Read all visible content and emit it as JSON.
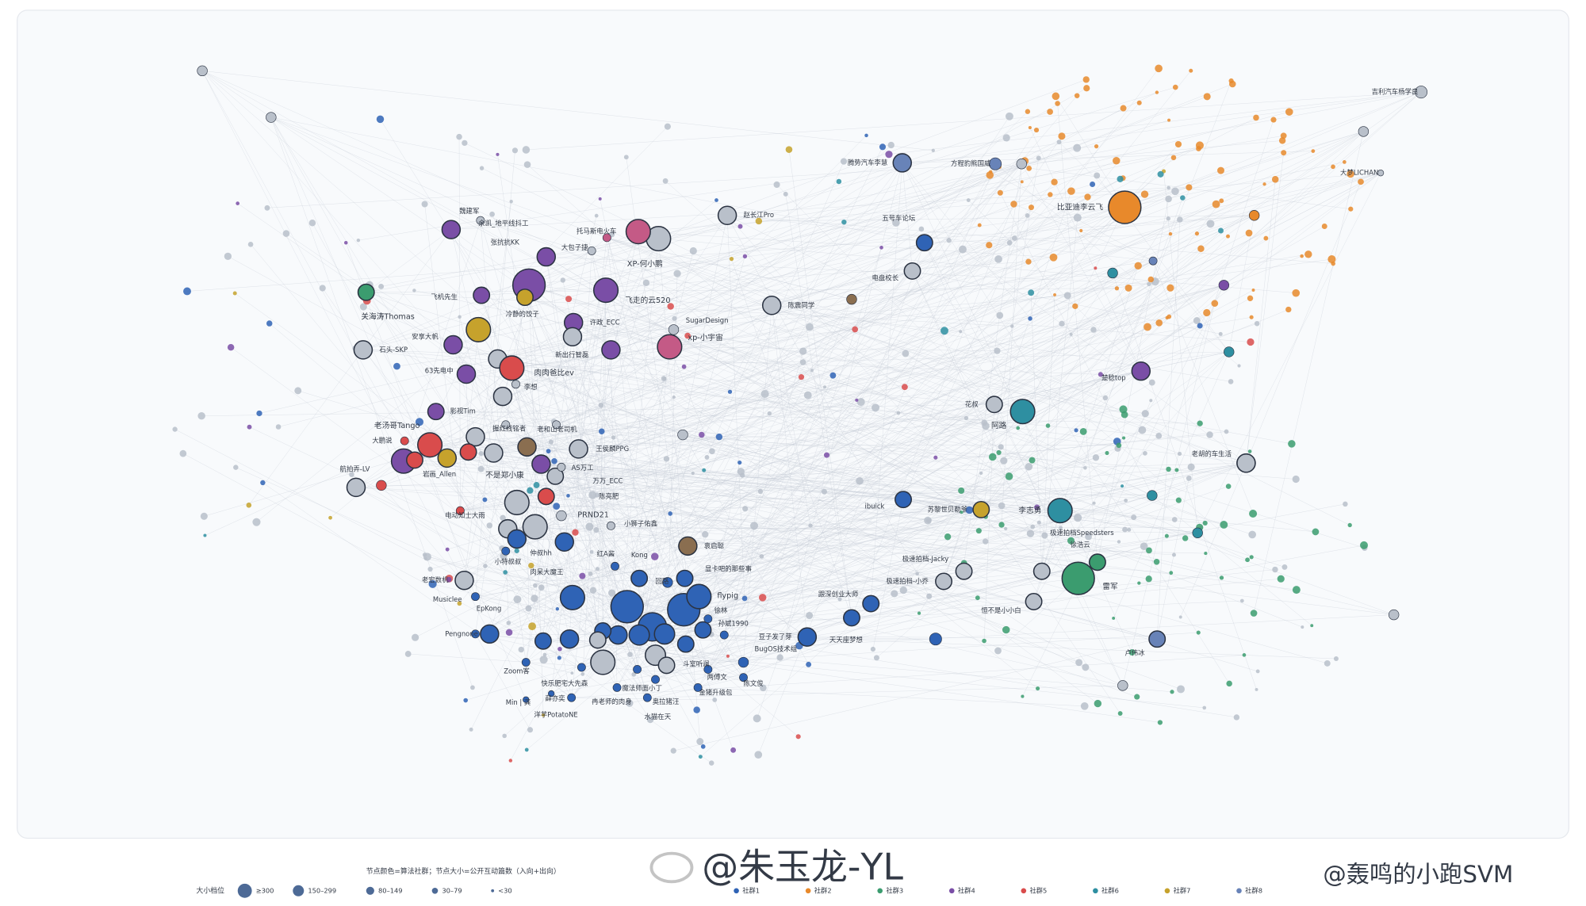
{
  "nodes": [
    {
      "label": "吉利汽车杨学良"
    },
    {
      "label": "大梦LICHAN"
    },
    {
      "label": "比亚迪李云飞"
    },
    {
      "label": "腾势汽车李慧"
    },
    {
      "label": "方程豹熊国威"
    },
    {
      "label": "赵长江Pro"
    },
    {
      "label": "五号车论坛"
    },
    {
      "label": "电盘校长"
    },
    {
      "label": "陈震同学"
    },
    {
      "label": "楚稔top"
    },
    {
      "label": "花叔"
    },
    {
      "label": "阿路"
    },
    {
      "label": "老胡的车生活"
    },
    {
      "label": "李志勇"
    },
    {
      "label": "苏黎世贝勒爷"
    },
    {
      "label": "极速拍档Speedsters"
    },
    {
      "label": "徐浩云"
    },
    {
      "label": "雷军"
    },
    {
      "label": "恒不是小小白"
    },
    {
      "label": "卢伟冰"
    },
    {
      "label": "极速拍档-Jacky"
    },
    {
      "label": "极速拍档-小乔"
    },
    {
      "label": "ibuick"
    },
    {
      "label": "天天座梦想"
    },
    {
      "label": "跟深创业大师"
    },
    {
      "label": "豆子发了芽"
    },
    {
      "label": "BugOS技术组"
    },
    {
      "label": "孙斌1990"
    },
    {
      "label": "徐林"
    },
    {
      "label": "flypig"
    },
    {
      "label": "显卡吧的那些事"
    },
    {
      "label": "回路"
    },
    {
      "label": "Kong"
    },
    {
      "label": "红A酱"
    },
    {
      "label": "袁启聪"
    },
    {
      "label": "小狮子佑鑫"
    },
    {
      "label": "PRND21"
    },
    {
      "label": "陈亮肥"
    },
    {
      "label": "万万_ECC"
    },
    {
      "label": "AS万工"
    },
    {
      "label": "王侯麟PPG"
    },
    {
      "label": "不是郑小康"
    },
    {
      "label": "仲叔hh"
    },
    {
      "label": "小特叔叔"
    },
    {
      "label": "肉呆大魔王"
    },
    {
      "label": "EpKong"
    },
    {
      "label": "Pengnone"
    },
    {
      "label": "Zoom客"
    },
    {
      "label": "快乐肥宅大先森"
    },
    {
      "label": "魔法师面小丁"
    },
    {
      "label": "奥拉猪汪"
    },
    {
      "label": "水猫在天"
    },
    {
      "label": "冉老师的肉身"
    },
    {
      "label": "洋芋PotatoNE"
    },
    {
      "label": "两傅文"
    },
    {
      "label": "斗室听澜"
    },
    {
      "label": "陈文俊"
    },
    {
      "label": "金猪升级包"
    },
    {
      "label": "老宏数机"
    },
    {
      "label": "老汤哥Tango"
    },
    {
      "label": "大鹏说"
    },
    {
      "label": "航拍弄-LV"
    },
    {
      "label": "岩画_Allen"
    },
    {
      "label": "电动知士大雨"
    },
    {
      "label": "63先电中"
    },
    {
      "label": "肉肉爸比ev"
    },
    {
      "label": "李想"
    },
    {
      "label": "影视Tim"
    },
    {
      "label": "老和山老司机"
    },
    {
      "label": "握红线铭者"
    },
    {
      "label": "石头-SKP"
    },
    {
      "label": "安享大帆"
    },
    {
      "label": "关海涛Thomas"
    },
    {
      "label": "冷静的饺子"
    },
    {
      "label": "飞机先生"
    },
    {
      "label": "许政_ECC"
    },
    {
      "label": "新出行智磊"
    },
    {
      "label": "XP-何小鹏"
    },
    {
      "label": "托马斯电火车"
    },
    {
      "label": "飞走的云520"
    },
    {
      "label": "xp-小宇宙"
    },
    {
      "label": "张抗抗KK"
    },
    {
      "label": "大包子捷"
    },
    {
      "label": "魏建军"
    },
    {
      "label": "余凯_地平线抖工"
    },
    {
      "label": "SugarDesign"
    },
    {
      "label": "Musiclee"
    },
    {
      "label": "Min | 龚"
    },
    {
      "label": "薛亦奕"
    }
  ],
  "legend": {
    "note": "节点颜色=算法社群；节点大小=公开互动篇数（入向+出向）",
    "size_title": "大小档位",
    "sizes": [
      "≥300",
      "150–299",
      "80–149",
      "30–79",
      "<30"
    ],
    "communities": [
      {
        "name": "社群1",
        "color": "#2f63b5"
      },
      {
        "name": "社群2",
        "color": "#e8892b"
      },
      {
        "name": "社群3",
        "color": "#3b9c6f"
      },
      {
        "name": "社群4",
        "color": "#7a4ea6"
      },
      {
        "name": "社群5",
        "color": "#d94c4c"
      },
      {
        "name": "社群6",
        "color": "#2e8fa1"
      },
      {
        "name": "社群7",
        "color": "#c6a22c"
      },
      {
        "name": "社群8",
        "color": "#6883b8"
      }
    ]
  },
  "watermarks": [
    "@朱玉龙-YL",
    "@轰鸣的小跑SVM"
  ]
}
